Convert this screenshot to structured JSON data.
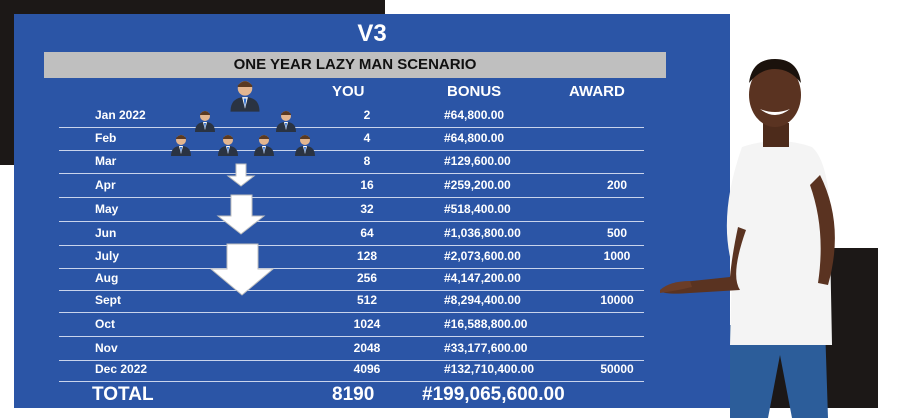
{
  "slide": {
    "version": "V3",
    "banner": "ONE YEAR LAZY MAN  SCENARIO",
    "headers": {
      "you": "YOU",
      "bonus": "BONUS",
      "award": "AWARD"
    },
    "rows": [
      {
        "month": "Jan 2022",
        "you": "2",
        "bonus": "#64,800.00",
        "award": ""
      },
      {
        "month": "Feb",
        "you": "4",
        "bonus": "#64,800.00",
        "award": ""
      },
      {
        "month": "Mar",
        "you": "8",
        "bonus": "#129,600.00",
        "award": ""
      },
      {
        "month": "Apr",
        "you": "16",
        "bonus": "#259,200.00",
        "award": "200"
      },
      {
        "month": "May",
        "you": "32",
        "bonus": "#518,400.00",
        "award": ""
      },
      {
        "month": "Jun",
        "you": "64",
        "bonus": "#1,036,800.00",
        "award": "500"
      },
      {
        "month": "July",
        "you": "128",
        "bonus": "#2,073,600.00",
        "award": "1000"
      },
      {
        "month": "Aug",
        "you": "256",
        "bonus": "#4,147,200.00",
        "award": ""
      },
      {
        "month": "Sept",
        "you": "512",
        "bonus": "#8,294,400.00",
        "award": "10000"
      },
      {
        "month": "Oct",
        "you": "1024",
        "bonus": "#16,588,800.00",
        "award": ""
      },
      {
        "month": "Nov",
        "you": "2048",
        "bonus": "#33,177,600.00",
        "award": ""
      },
      {
        "month": "Dec 2022",
        "you": "4096",
        "bonus": "#132,710,400.00",
        "award": "50000"
      }
    ],
    "total": {
      "label": "TOTAL",
      "you": "8190",
      "bonus": "#199,065,600.00"
    }
  },
  "colors": {
    "slide_bg": "#2b55a6",
    "banner_bg": "#bfbfbf",
    "dark_block": "#1c1817"
  }
}
